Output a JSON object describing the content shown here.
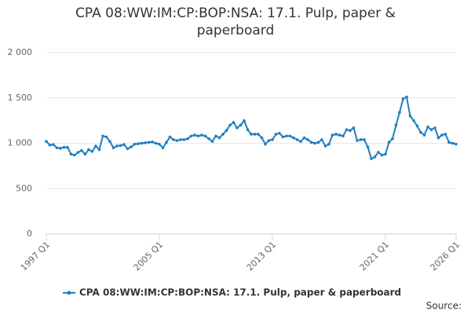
{
  "chart_data": {
    "type": "line",
    "title": "CPA 08:WW:IM:CP:BOP:NSA: 17.1. Pulp, paper & paperboard",
    "source": "Source:",
    "categories": [
      "1997 Q1",
      null,
      null,
      null,
      null,
      null,
      null,
      null,
      null,
      null,
      null,
      null,
      null,
      null,
      null,
      null,
      null,
      null,
      null,
      null,
      null,
      null,
      null,
      null,
      null,
      null,
      null,
      null,
      null,
      null,
      null,
      null,
      "2005 Q1",
      null,
      null,
      null,
      null,
      null,
      null,
      null,
      null,
      null,
      null,
      null,
      null,
      null,
      null,
      null,
      null,
      null,
      null,
      null,
      null,
      null,
      null,
      null,
      null,
      null,
      null,
      null,
      null,
      null,
      null,
      null,
      "2013 Q1",
      null,
      null,
      null,
      null,
      null,
      null,
      null,
      null,
      null,
      null,
      null,
      null,
      null,
      null,
      null,
      null,
      null,
      null,
      null,
      null,
      null,
      null,
      null,
      null,
      null,
      null,
      null,
      null,
      null,
      null,
      null,
      "2021 Q1",
      null,
      null,
      null,
      null,
      null,
      null,
      null,
      null,
      null,
      null,
      null,
      null,
      null,
      null,
      null,
      null,
      null,
      null,
      null,
      "2026 Q1"
    ],
    "series": [
      {
        "name": "CPA 08:WW:IM:CP:BOP:NSA: 17.1. Pulp, paper & paperboard",
        "color": "#1f7fc0",
        "values": [
          1020,
          980,
          985,
          950,
          945,
          955,
          955,
          880,
          870,
          900,
          920,
          880,
          930,
          910,
          970,
          930,
          1080,
          1070,
          1020,
          950,
          970,
          975,
          985,
          940,
          960,
          990,
          995,
          1000,
          1005,
          1010,
          1015,
          1000,
          990,
          950,
          1010,
          1070,
          1040,
          1030,
          1040,
          1040,
          1050,
          1080,
          1090,
          1080,
          1090,
          1080,
          1050,
          1020,
          1080,
          1060,
          1100,
          1140,
          1200,
          1230,
          1170,
          1200,
          1250,
          1150,
          1100,
          1100,
          1100,
          1060,
          990,
          1030,
          1040,
          1100,
          1110,
          1070,
          1080,
          1080,
          1060,
          1040,
          1020,
          1060,
          1040,
          1010,
          1000,
          1010,
          1040,
          970,
          990,
          1090,
          1100,
          1090,
          1080,
          1150,
          1140,
          1170,
          1030,
          1040,
          1040,
          960,
          830,
          850,
          900,
          870,
          880,
          1010,
          1050,
          1200,
          1340,
          1490,
          1510,
          1300,
          1250,
          1190,
          1120,
          1090,
          1180,
          1150,
          1170,
          1060,
          1090,
          1100,
          1010,
          1000,
          990
        ]
      }
    ],
    "ylim": [
      0,
      2000
    ],
    "yticks": [
      0,
      500,
      {
        "value": 1000,
        "label": "1 000"
      },
      {
        "value": 1500,
        "label": "1 500"
      },
      {
        "value": 2000,
        "label": "2 000"
      }
    ],
    "grid": true,
    "legend": "bottom"
  }
}
